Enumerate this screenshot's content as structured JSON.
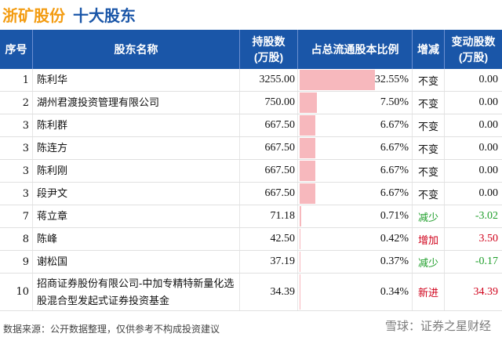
{
  "header": {
    "company": "浙矿股份",
    "section": "十大股东"
  },
  "table": {
    "headers": {
      "idx": "序号",
      "name": "股东名称",
      "hold_line1": "持股数",
      "hold_line2": "(万股)",
      "ratio": "占总流通股本比例",
      "change": "增减",
      "delta_line1": "变动股数",
      "delta_line2": "(万股)"
    },
    "rows": [
      {
        "idx": "1",
        "name": "陈利华",
        "hold": "3255.00",
        "ratio": "32.55%",
        "ratio_value": 32.55,
        "change": "不变",
        "delta": "0.00"
      },
      {
        "idx": "2",
        "name": "湖州君渡投资管理有限公司",
        "hold": "750.00",
        "ratio": "7.50%",
        "ratio_value": 7.5,
        "change": "不变",
        "delta": "0.00"
      },
      {
        "idx": "3",
        "name": "陈利群",
        "hold": "667.50",
        "ratio": "6.67%",
        "ratio_value": 6.67,
        "change": "不变",
        "delta": "0.00"
      },
      {
        "idx": "3",
        "name": "陈连方",
        "hold": "667.50",
        "ratio": "6.67%",
        "ratio_value": 6.67,
        "change": "不变",
        "delta": "0.00"
      },
      {
        "idx": "3",
        "name": "陈利刚",
        "hold": "667.50",
        "ratio": "6.67%",
        "ratio_value": 6.67,
        "change": "不变",
        "delta": "0.00"
      },
      {
        "idx": "3",
        "name": "段尹文",
        "hold": "667.50",
        "ratio": "6.67%",
        "ratio_value": 6.67,
        "change": "不变",
        "delta": "0.00"
      },
      {
        "idx": "7",
        "name": "蒋立章",
        "hold": "71.18",
        "ratio": "0.71%",
        "ratio_value": 0.71,
        "change": "减少",
        "delta": "-3.02"
      },
      {
        "idx": "8",
        "name": "陈峰",
        "hold": "42.50",
        "ratio": "0.42%",
        "ratio_value": 0.42,
        "change": "增加",
        "delta": "3.50"
      },
      {
        "idx": "9",
        "name": "谢松国",
        "hold": "37.19",
        "ratio": "0.37%",
        "ratio_value": 0.37,
        "change": "减少",
        "delta": "-0.17"
      },
      {
        "idx": "10",
        "name": "招商证券股份有限公司-中加专精特新量化选股混合型发起式证券投资基金",
        "hold": "34.39",
        "ratio": "0.34%",
        "ratio_value": 0.34,
        "change": "新进",
        "delta": "34.39"
      }
    ]
  },
  "footer": {
    "source": "数据来源：公开数据整理，仅供参考不构成投资建议"
  },
  "watermark": {
    "logo_text": "雪球：证券之星财经"
  },
  "colors": {
    "header_bg": "#1a56a8",
    "company": "#f39c12",
    "bar": "#f7b8bd",
    "increase": "#d0021b",
    "decrease": "#1e9e2a",
    "neutral": "#111111"
  }
}
